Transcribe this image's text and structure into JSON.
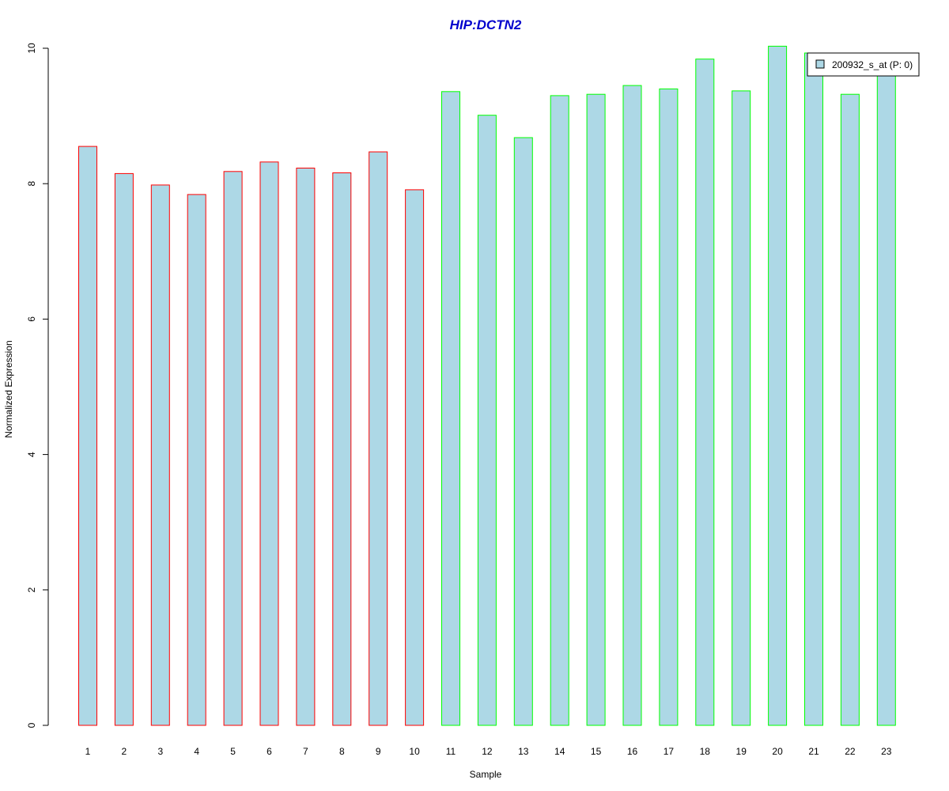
{
  "chart_data": {
    "type": "bar",
    "title": "HIP:DCTN2",
    "xlabel": "Sample",
    "ylabel": "Normalized Expression",
    "ylim": [
      0,
      10
    ],
    "yticks": [
      "0",
      "2",
      "4",
      "6",
      "8",
      "10"
    ],
    "categories": [
      "1",
      "2",
      "3",
      "4",
      "5",
      "6",
      "7",
      "8",
      "9",
      "10",
      "11",
      "12",
      "13",
      "14",
      "15",
      "16",
      "17",
      "18",
      "19",
      "20",
      "21",
      "22",
      "23"
    ],
    "series": [
      {
        "name": "200932_s_at (P: 0)",
        "values": [
          8.55,
          8.15,
          7.98,
          7.84,
          8.18,
          8.32,
          8.23,
          8.16,
          8.47,
          7.91,
          9.36,
          9.01,
          8.68,
          9.3,
          9.32,
          9.45,
          9.4,
          9.84,
          9.37,
          10.03,
          9.93,
          9.32,
          9.65
        ]
      }
    ],
    "bar_outline_colors": [
      "#ff0000",
      "#ff0000",
      "#ff0000",
      "#ff0000",
      "#ff0000",
      "#ff0000",
      "#ff0000",
      "#ff0000",
      "#ff0000",
      "#ff0000",
      "#00ff00",
      "#00ff00",
      "#00ff00",
      "#00ff00",
      "#00ff00",
      "#00ff00",
      "#00ff00",
      "#00ff00",
      "#00ff00",
      "#00ff00",
      "#00ff00",
      "#00ff00",
      "#00ff00"
    ],
    "fill_color": "#add8e6",
    "title_color": "#0000cd",
    "grid": false,
    "legend_position": "top-right"
  }
}
